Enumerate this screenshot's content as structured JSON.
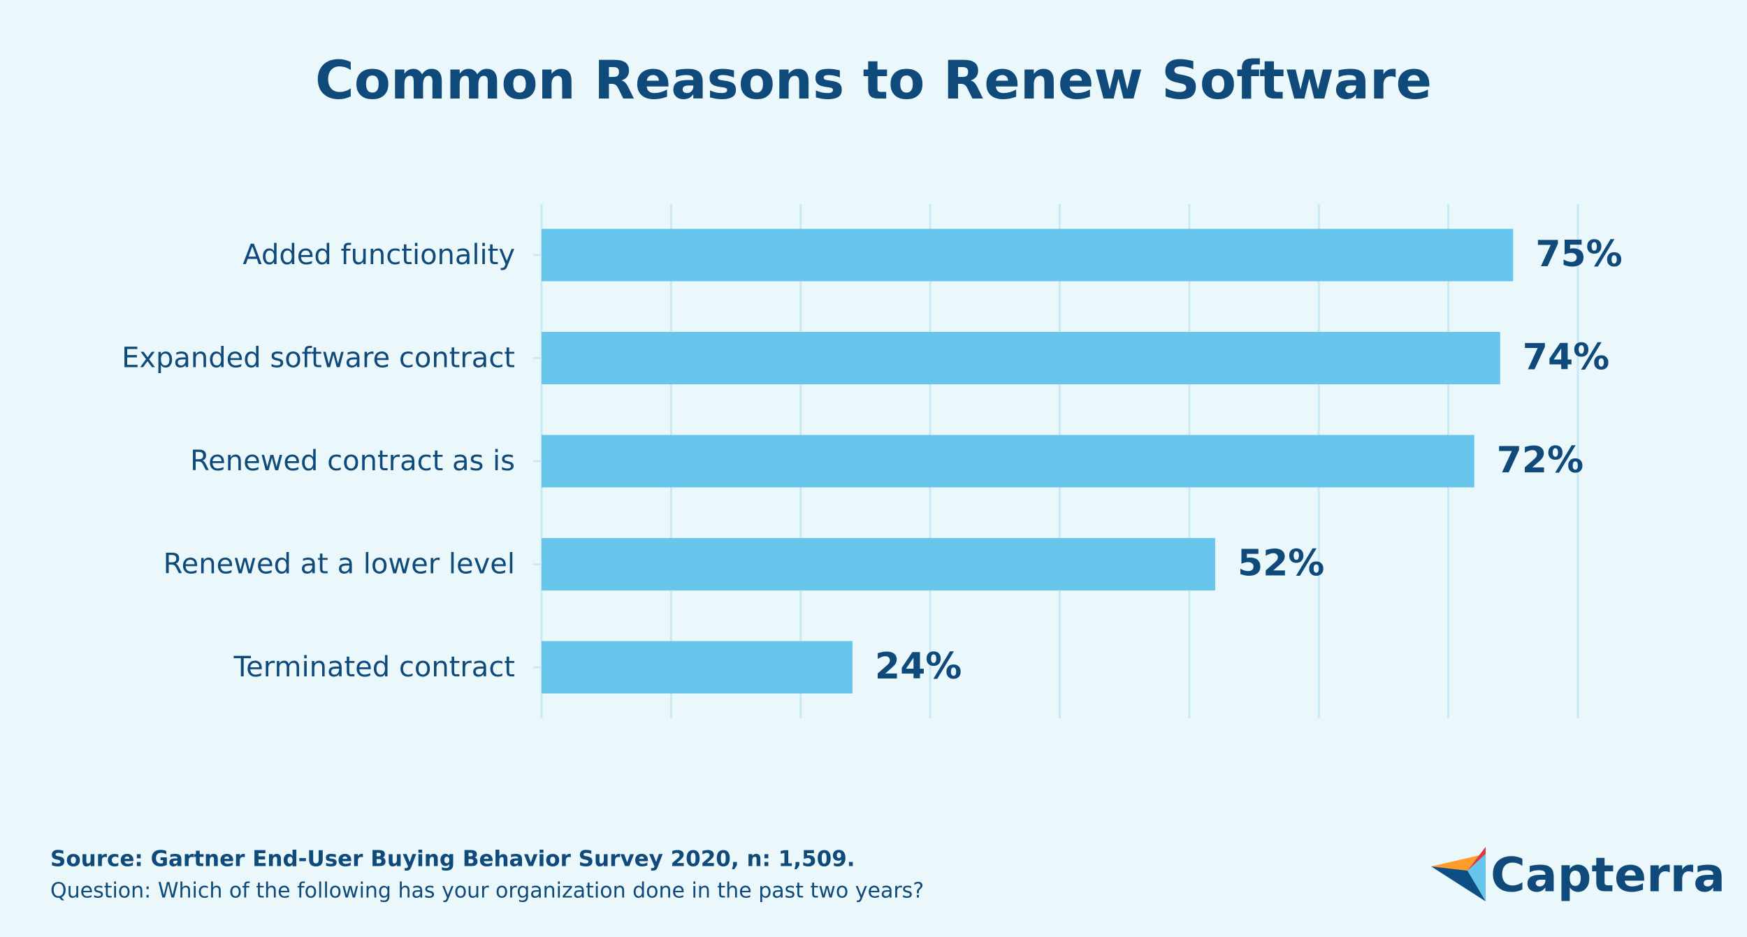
{
  "chart_data": {
    "type": "hbar",
    "title": "Common Reasons to Renew Software",
    "categories": [
      "Added functionality",
      "Expanded software contract",
      "Renewed contract as is",
      "Renewed at a lower level",
      "Terminated contract"
    ],
    "values": [
      75,
      74,
      72,
      52,
      24
    ],
    "value_labels": [
      "75%",
      "74%",
      "72%",
      "52%",
      "24%"
    ],
    "color": "#68c5ec",
    "xlim": [
      0,
      80
    ],
    "xticks": [
      0,
      10,
      20,
      30,
      40,
      50,
      60,
      70,
      80
    ],
    "grid": true,
    "source": "Source: Gartner End-User Buying Behavior Survey 2020, n: 1,509.",
    "note": "Question: Which of the following has your organization done in the past two years?"
  },
  "brand": "Capterra"
}
